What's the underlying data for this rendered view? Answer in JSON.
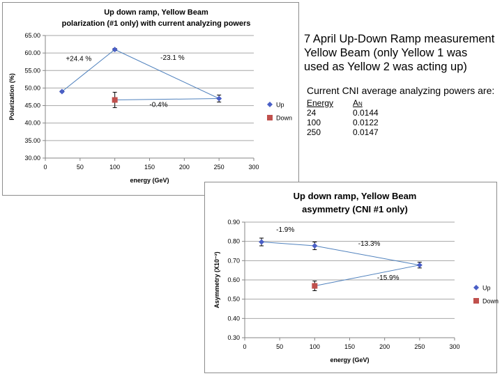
{
  "colors": {
    "up": "#4a5fc6",
    "down": "#c0504d",
    "line": "#4f81bd",
    "grid": "#a6a6a6",
    "axis": "#868686"
  },
  "notes": {
    "line1": "7 April Up-Down Ramp measurement",
    "line2": "Yellow Beam (only Yellow 1 was",
    "line3": "used as Yellow 2 was acting up)"
  },
  "cni": {
    "heading": "Current CNI average analyzing powers are:",
    "col_energy": "Energy",
    "col_an": "An",
    "rows": [
      {
        "energy": "24",
        "an": "0.0144"
      },
      {
        "energy": "100",
        "an": "0.0122"
      },
      {
        "energy": "250",
        "an": "0.0147"
      }
    ]
  },
  "chart_data": [
    {
      "type": "scatter",
      "title": "Up down ramp, Yellow Beam",
      "subtitle": "polarization (#1 only) with current analyzing powers",
      "xlabel": "energy (GeV)",
      "ylabel": "Polarization (%)",
      "xlim": [
        0,
        300
      ],
      "ylim": [
        30,
        65
      ],
      "xticks": [
        0,
        50,
        100,
        150,
        200,
        250,
        300
      ],
      "yticks": [
        30,
        35,
        40,
        45,
        50,
        55,
        60,
        65
      ],
      "xtick_labels": [
        "0",
        "50",
        "100",
        "150",
        "200",
        "250",
        "300"
      ],
      "ytick_labels": [
        "30.00",
        "35.00",
        "40.00",
        "45.00",
        "50.00",
        "55.00",
        "60.00",
        "65.00"
      ],
      "grid": true,
      "legend_position": "right",
      "series": [
        {
          "name": "Up",
          "marker": "diamond",
          "x": [
            24,
            100,
            250
          ],
          "y": [
            49.0,
            61.0,
            47.0
          ],
          "err": [
            0.2,
            0.3,
            1.0
          ]
        },
        {
          "name": "Down",
          "marker": "square",
          "x": [
            100
          ],
          "y": [
            46.6
          ],
          "err": [
            2.2
          ]
        }
      ],
      "annotations": [
        {
          "text": "+24.4 %",
          "x": 48,
          "y": 57.7
        },
        {
          "text": "-23.1 %",
          "x": 183,
          "y": 58
        },
        {
          "text": "-0.4%",
          "x": 163,
          "y": 44.6
        }
      ]
    },
    {
      "type": "scatter",
      "title": "Up down ramp, Yellow Beam",
      "subtitle": "asymmetry (CNI #1 only)",
      "xlabel": "energy (GeV)",
      "ylabel": "Asymmetry (X10⁻²)",
      "xlim": [
        0,
        300
      ],
      "ylim": [
        0.3,
        0.9
      ],
      "xticks": [
        0,
        50,
        100,
        150,
        200,
        250,
        300
      ],
      "yticks": [
        0.3,
        0.4,
        0.5,
        0.6,
        0.7,
        0.8,
        0.9
      ],
      "xtick_labels": [
        "0",
        "50",
        "100",
        "150",
        "200",
        "250",
        "300"
      ],
      "ytick_labels": [
        "0.30",
        "0.40",
        "0.50",
        "0.60",
        "0.70",
        "0.80",
        "0.90"
      ],
      "grid": true,
      "legend_position": "right",
      "series": [
        {
          "name": "Up",
          "marker": "diamond",
          "x": [
            24,
            100,
            250
          ],
          "y": [
            0.797,
            0.777,
            0.677
          ],
          "err": [
            0.02,
            0.02,
            0.015
          ]
        },
        {
          "name": "Down",
          "marker": "square",
          "x": [
            100
          ],
          "y": [
            0.569
          ],
          "err": [
            0.025
          ]
        }
      ],
      "annotations": [
        {
          "text": "-1.9%",
          "x": 58,
          "y": 0.85
        },
        {
          "text": "-13.3%",
          "x": 178,
          "y": 0.777
        },
        {
          "text": "-15.9%",
          "x": 205,
          "y": 0.6
        }
      ]
    }
  ]
}
